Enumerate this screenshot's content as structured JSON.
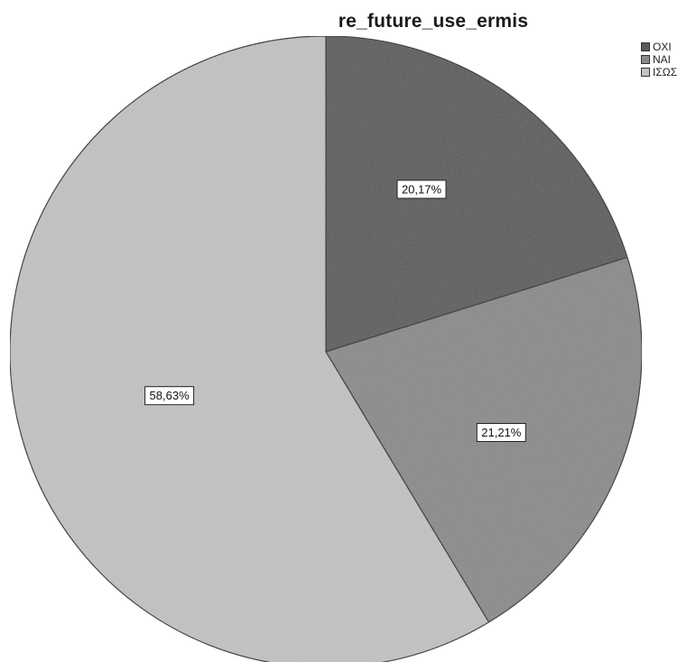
{
  "chart_data": {
    "type": "pie",
    "title": "re_future_use_ermis",
    "categories": [
      "ΟΧΙ",
      "ΝΑΙ",
      "ΙΣΩΣ"
    ],
    "values": [
      20.17,
      21.21,
      58.63
    ],
    "data_labels": [
      "20,17%",
      "21,21%",
      "58,63%"
    ],
    "colors": [
      "#5a5a5a",
      "#8a8a8a",
      "#c2c2c2"
    ],
    "start_angle_deg": 0,
    "direction": "clockwise",
    "legend_position": "top-right"
  }
}
